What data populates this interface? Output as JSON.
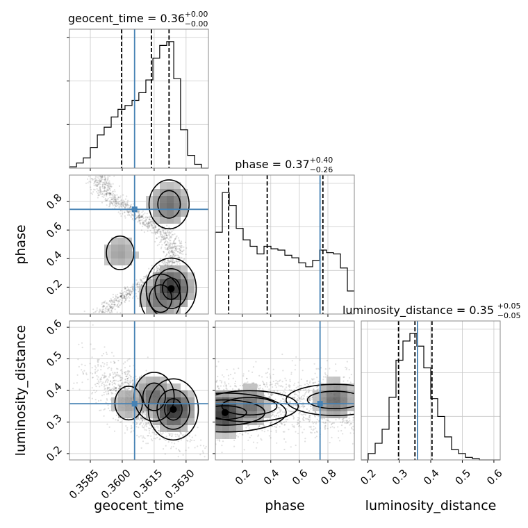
{
  "chart_data": {
    "type": "corner",
    "parameters": [
      "geocent_time",
      "phase",
      "luminosity_distance"
    ],
    "truths": {
      "geocent_time": 0.36058,
      "phase": 0.745,
      "luminosity_distance": 0.358
    },
    "titles": {
      "geocent_time": {
        "label": "geocent_time = 0.36",
        "plus": "+0.00",
        "minus": "−0.00"
      },
      "phase": {
        "label": "phase = 0.37",
        "plus": "+0.40",
        "minus": "−0.26"
      },
      "luminosity_distance": {
        "label": "luminosity_distance = 0.35",
        "plus": "+0.05",
        "minus": "−0.05"
      }
    },
    "ranges": {
      "geocent_time": [
        0.35752,
        0.36405
      ],
      "phase": [
        0.012,
        0.985
      ],
      "luminosity_distance": [
        0.18,
        0.62
      ]
    },
    "ticks": {
      "geocent_time": {
        "values": [
          0.3585,
          0.36,
          0.3615,
          0.363
        ],
        "labels": [
          "0.3585",
          "0.3600",
          "0.3615",
          "0.3630"
        ]
      },
      "phase": {
        "values": [
          0.2,
          0.4,
          0.6,
          0.8
        ],
        "labels": [
          "0.2",
          "0.4",
          "0.6",
          "0.8"
        ]
      },
      "luminosity_distance": {
        "values": [
          0.2,
          0.3,
          0.4,
          0.5,
          0.6
        ],
        "labels": [
          "0.2",
          "0.3",
          "0.4",
          "0.5",
          "0.6"
        ]
      }
    },
    "quantiles": {
      "geocent_time": [
        0.35997,
        0.36137,
        0.3622
      ],
      "phase": [
        0.105,
        0.375,
        0.765
      ],
      "luminosity_distance": [
        0.298,
        0.35,
        0.404
      ]
    },
    "histograms": {
      "geocent_time": {
        "edges": [
          0.35752,
          0.35785,
          0.35817,
          0.3585,
          0.35883,
          0.35915,
          0.35948,
          0.3598,
          0.36013,
          0.36046,
          0.36078,
          0.36111,
          0.36144,
          0.36176,
          0.36209,
          0.36242,
          0.36274,
          0.36307,
          0.3634,
          0.36372,
          0.36405
        ],
        "counts": [
          0.01,
          0.04,
          0.08,
          0.16,
          0.26,
          0.32,
          0.4,
          0.46,
          0.49,
          0.53,
          0.59,
          0.69,
          0.86,
          0.96,
          0.99,
          0.7,
          0.3,
          0.1,
          0.03,
          0.0
        ]
      },
      "phase": {
        "edges": [
          0.012,
          0.0607,
          0.1093,
          0.158,
          0.2066,
          0.2553,
          0.304,
          0.3526,
          0.4013,
          0.4499,
          0.4986,
          0.5473,
          0.5959,
          0.6446,
          0.6932,
          0.7419,
          0.7906,
          0.8392,
          0.8879,
          0.9365,
          0.985
        ],
        "counts": [
          0.64,
          0.95,
          0.85,
          0.67,
          0.58,
          0.53,
          0.47,
          0.53,
          0.51,
          0.5,
          0.46,
          0.44,
          0.4,
          0.37,
          0.42,
          0.5,
          0.48,
          0.47,
          0.36,
          0.18
        ]
      },
      "luminosity_distance": {
        "edges": [
          0.18,
          0.202,
          0.224,
          0.246,
          0.268,
          0.29,
          0.312,
          0.334,
          0.356,
          0.378,
          0.4,
          0.422,
          0.444,
          0.466,
          0.488,
          0.51,
          0.532,
          0.554,
          0.576,
          0.598,
          0.62
        ],
        "counts": [
          0.0,
          0.05,
          0.13,
          0.24,
          0.49,
          0.78,
          0.93,
          0.99,
          0.89,
          0.72,
          0.48,
          0.34,
          0.18,
          0.08,
          0.05,
          0.02,
          0.01,
          0.0,
          0.0,
          0.0
        ]
      }
    },
    "density_peaks": {
      "geocent_time_vs_phase": [
        {
          "x": 0.3623,
          "y": 0.19,
          "level": "high"
        },
        {
          "x": 0.3618,
          "y": 0.12,
          "level": "mid"
        },
        {
          "x": 0.3622,
          "y": 0.78,
          "level": "mid"
        },
        {
          "x": 0.3599,
          "y": 0.44,
          "level": "low"
        }
      ],
      "geocent_time_vs_luminosity_distance": [
        {
          "x": 0.3624,
          "y": 0.34,
          "level": "high"
        },
        {
          "x": 0.3615,
          "y": 0.38,
          "level": "mid"
        },
        {
          "x": 0.3603,
          "y": 0.36,
          "level": "low"
        }
      ],
      "phase_vs_luminosity_distance": [
        {
          "x": 0.08,
          "y": 0.33,
          "level": "high"
        },
        {
          "x": 0.25,
          "y": 0.35,
          "level": "mid"
        },
        {
          "x": 0.85,
          "y": 0.37,
          "level": "mid"
        }
      ]
    },
    "colors": {
      "truth": "#4682b4",
      "hist": "#000000",
      "quantile": "#000000",
      "grid": "#c8c8c8",
      "axis": "#888888"
    }
  }
}
